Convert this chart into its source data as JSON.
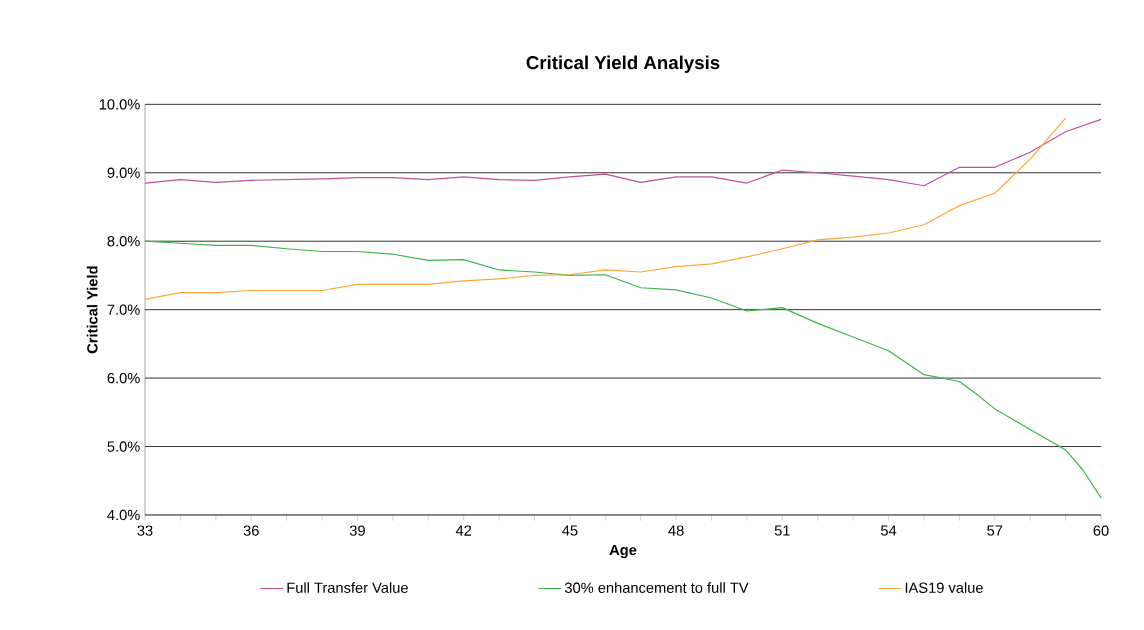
{
  "chart_data": {
    "type": "line",
    "title": "Critical Yield Analysis",
    "xlabel": "Age",
    "ylabel": "Critical Yield",
    "xlim": [
      33,
      60
    ],
    "xticks": [
      33,
      {
        "value": 34,
        "label": null
      },
      {
        "value": 35,
        "label": null
      },
      36,
      {
        "value": 37,
        "label": null
      },
      {
        "value": 38,
        "label": null
      },
      39,
      {
        "value": 40,
        "label": null
      },
      {
        "value": 41,
        "label": null
      },
      42,
      {
        "value": 43,
        "label": null
      },
      {
        "value": 44,
        "label": null
      },
      45,
      {
        "value": 46,
        "label": null
      },
      {
        "value": 47,
        "label": null
      },
      48,
      {
        "value": 49,
        "label": null
      },
      {
        "value": 50,
        "label": null
      },
      51,
      {
        "value": 52,
        "label": null
      },
      {
        "value": 53,
        "label": null
      },
      54,
      {
        "value": 55,
        "label": null
      },
      {
        "value": 56,
        "label": null
      },
      57,
      {
        "value": 58,
        "label": null
      },
      {
        "value": 59,
        "label": null
      },
      60
    ],
    "ylim": [
      4,
      10
    ],
    "yticks": [
      {
        "value": 4,
        "label": "4.0%"
      },
      {
        "value": 5,
        "label": "5.0%"
      },
      {
        "value": 6,
        "label": "6.0%"
      },
      {
        "value": 7,
        "label": "7.0%"
      },
      {
        "value": 8,
        "label": "8.0%"
      },
      {
        "value": 9,
        "label": "9.0%"
      },
      {
        "value": 10,
        "label": "10.0%"
      }
    ],
    "grid": "y",
    "legend": "bottom",
    "marker": "none",
    "line_style": "solid",
    "series": [
      {
        "name": "Full Transfer Value",
        "color": "#c0509c",
        "x": [
          33,
          34,
          35,
          36,
          37,
          38,
          39,
          40,
          41,
          42,
          43,
          44,
          45,
          46,
          47,
          48,
          49,
          50,
          51,
          52,
          53,
          54,
          55,
          56,
          57,
          58,
          59,
          60
        ],
        "values": [
          8.85,
          8.9,
          8.86,
          8.89,
          8.9,
          8.91,
          8.93,
          8.93,
          8.9,
          8.94,
          8.9,
          8.89,
          8.94,
          8.98,
          8.86,
          8.94,
          8.94,
          8.85,
          9.04,
          9.0,
          8.95,
          8.9,
          8.81,
          9.08,
          9.08,
          9.3,
          9.6,
          9.78
        ]
      },
      {
        "name": "30% enhancement to full TV",
        "color": "#3cb64a",
        "x": [
          33,
          34,
          35,
          36,
          37,
          38,
          39,
          40,
          41,
          42,
          43,
          44,
          45,
          46,
          47,
          48,
          49,
          50,
          51,
          52,
          53,
          54,
          55,
          56,
          56.5,
          57,
          58,
          59,
          59.5,
          60
        ],
        "values": [
          8.0,
          7.97,
          7.94,
          7.94,
          7.89,
          7.85,
          7.85,
          7.81,
          7.72,
          7.73,
          7.58,
          7.55,
          7.5,
          7.51,
          7.32,
          7.29,
          7.17,
          6.98,
          7.03,
          6.8,
          6.6,
          6.4,
          6.05,
          5.95,
          5.76,
          5.55,
          5.25,
          4.95,
          4.65,
          4.25
        ]
      },
      {
        "name": "IAS19 value",
        "color": "#f9a83a",
        "x": [
          33,
          34,
          35,
          36,
          37,
          38,
          39,
          40,
          41,
          42,
          43,
          44,
          45,
          46,
          47,
          48,
          49,
          50,
          51,
          52,
          53,
          54,
          55,
          56,
          57,
          58,
          59
        ],
        "values": [
          7.15,
          7.25,
          7.25,
          7.28,
          7.28,
          7.28,
          7.37,
          7.37,
          7.37,
          7.42,
          7.45,
          7.5,
          7.51,
          7.58,
          7.55,
          7.63,
          7.67,
          7.77,
          7.89,
          8.02,
          8.06,
          8.12,
          8.24,
          8.52,
          8.7,
          9.2,
          9.8
        ]
      }
    ]
  }
}
